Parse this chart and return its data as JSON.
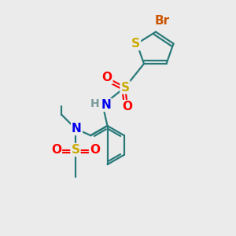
{
  "bg_color": "#ebebeb",
  "atom_colors": {
    "C": "#1a6b6b",
    "H": "#7a9a9a",
    "N": "#0000ee",
    "O": "#ff0000",
    "S": "#ccaa00",
    "Br": "#cc5500"
  },
  "bond_color": "#2a7a7a",
  "bond_color_dark": "#1a5a5a",
  "bond_width": 1.6,
  "font_size_atom": 11,
  "font_size_small": 9
}
